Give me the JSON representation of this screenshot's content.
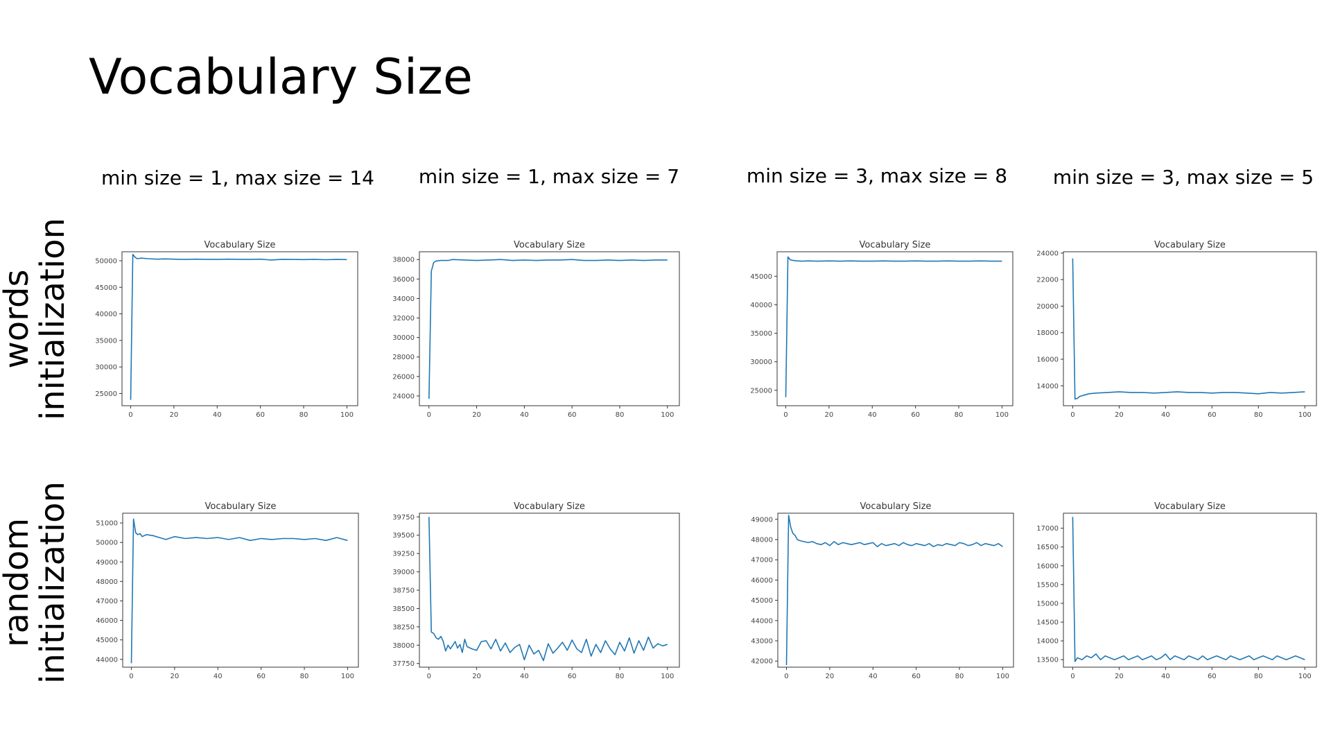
{
  "page": {
    "title": "Vocabulary Size"
  },
  "columns": [
    "min size = 1, max size = 14",
    "min size = 1, max size = 7",
    "min size = 3, max size = 8",
    "min size = 3, max size = 5"
  ],
  "rows": [
    {
      "line1": "words",
      "line2": "initialization"
    },
    {
      "line1": "random",
      "line2": "initialization"
    }
  ],
  "colors": {
    "line": "#1f77b4",
    "text": "#000000",
    "axis": "#333333"
  },
  "chart_data": [
    {
      "type": "line",
      "title": "Vocabulary Size",
      "xlabel": "",
      "ylabel": "",
      "xlim": [
        -4,
        105
      ],
      "ylim": [
        22700,
        51700
      ],
      "xticks": [
        0,
        20,
        40,
        60,
        80,
        100
      ],
      "yticks": [
        25000,
        30000,
        35000,
        40000,
        45000,
        50000
      ],
      "series": [
        {
          "x": [
            0,
            1,
            2,
            3,
            5,
            8,
            12,
            16,
            20,
            25,
            30,
            35,
            40,
            45,
            50,
            55,
            60,
            65,
            70,
            75,
            80,
            85,
            90,
            95,
            100
          ],
          "y": [
            23800,
            51200,
            50700,
            50400,
            50500,
            50400,
            50300,
            50350,
            50300,
            50250,
            50300,
            50280,
            50250,
            50300,
            50270,
            50250,
            50300,
            50150,
            50280,
            50250,
            50220,
            50280,
            50200,
            50250,
            50230
          ]
        }
      ]
    },
    {
      "type": "line",
      "title": "Vocabulary Size",
      "xlabel": "",
      "ylabel": "",
      "xlim": [
        -4,
        105
      ],
      "ylim": [
        23000,
        38800
      ],
      "xticks": [
        0,
        20,
        40,
        60,
        80,
        100
      ],
      "yticks": [
        24000,
        26000,
        28000,
        30000,
        32000,
        34000,
        36000,
        38000
      ],
      "series": [
        {
          "x": [
            0,
            1,
            2,
            3,
            5,
            8,
            10,
            15,
            20,
            25,
            30,
            35,
            40,
            45,
            50,
            55,
            60,
            65,
            70,
            75,
            80,
            85,
            90,
            95,
            100
          ],
          "y": [
            23700,
            36800,
            37700,
            37850,
            37900,
            37900,
            38000,
            37950,
            37900,
            37950,
            38000,
            37900,
            37950,
            37900,
            37950,
            37950,
            38000,
            37900,
            37900,
            37950,
            37900,
            37950,
            37900,
            37950,
            37950
          ]
        }
      ]
    },
    {
      "type": "line",
      "title": "Vocabulary Size",
      "xlabel": "",
      "ylabel": "",
      "xlim": [
        -4,
        105
      ],
      "ylim": [
        22300,
        49300
      ],
      "xticks": [
        0,
        20,
        40,
        60,
        80,
        100
      ],
      "yticks": [
        25000,
        30000,
        35000,
        40000,
        45000
      ],
      "series": [
        {
          "x": [
            0,
            1,
            2,
            3,
            5,
            8,
            10,
            15,
            20,
            25,
            30,
            35,
            40,
            45,
            50,
            55,
            60,
            65,
            70,
            75,
            80,
            85,
            90,
            95,
            100
          ],
          "y": [
            23800,
            48400,
            47900,
            47800,
            47700,
            47650,
            47700,
            47650,
            47700,
            47650,
            47700,
            47650,
            47650,
            47700,
            47650,
            47650,
            47700,
            47650,
            47650,
            47700,
            47650,
            47650,
            47700,
            47650,
            47650
          ]
        }
      ]
    },
    {
      "type": "line",
      "title": "Vocabulary Size",
      "xlabel": "",
      "ylabel": "",
      "xlim": [
        -4,
        105
      ],
      "ylim": [
        12500,
        24100
      ],
      "xticks": [
        0,
        20,
        40,
        60,
        80,
        100
      ],
      "yticks": [
        14000,
        16000,
        18000,
        20000,
        22000,
        24000
      ],
      "series": [
        {
          "x": [
            0,
            1,
            2,
            3,
            5,
            7,
            10,
            15,
            20,
            25,
            30,
            35,
            40,
            45,
            50,
            55,
            60,
            65,
            70,
            75,
            80,
            85,
            90,
            95,
            100
          ],
          "y": [
            23600,
            13000,
            13050,
            13200,
            13300,
            13400,
            13450,
            13500,
            13550,
            13500,
            13500,
            13450,
            13500,
            13550,
            13500,
            13500,
            13450,
            13500,
            13500,
            13450,
            13400,
            13500,
            13450,
            13500,
            13550
          ]
        }
      ]
    },
    {
      "type": "line",
      "title": "Vocabulary Size",
      "xlabel": "",
      "ylabel": "",
      "xlim": [
        -4,
        105
      ],
      "ylim": [
        43600,
        51500
      ],
      "xticks": [
        0,
        20,
        40,
        60,
        80,
        100
      ],
      "yticks": [
        44000,
        45000,
        46000,
        47000,
        48000,
        49000,
        50000,
        51000
      ],
      "series": [
        {
          "x": [
            0,
            1,
            2,
            3,
            4,
            5,
            7,
            10,
            13,
            16,
            20,
            25,
            30,
            35,
            40,
            45,
            50,
            55,
            60,
            65,
            70,
            75,
            80,
            85,
            90,
            95,
            100
          ],
          "y": [
            43800,
            51200,
            50500,
            50400,
            50450,
            50300,
            50400,
            50350,
            50250,
            50150,
            50300,
            50200,
            50250,
            50200,
            50250,
            50150,
            50250,
            50100,
            50200,
            50150,
            50200,
            50200,
            50150,
            50200,
            50100,
            50250,
            50100
          ]
        }
      ]
    },
    {
      "type": "line",
      "title": "Vocabulary Size",
      "xlabel": "",
      "ylabel": "",
      "xlim": [
        -4,
        105
      ],
      "ylim": [
        37700,
        39800
      ],
      "xticks": [
        0,
        20,
        40,
        60,
        80,
        100
      ],
      "yticks": [
        37750,
        38000,
        38250,
        38500,
        38750,
        39000,
        39250,
        39500,
        39750
      ],
      "series": [
        {
          "x": [
            0,
            1,
            2,
            3,
            4,
            5,
            6,
            7,
            8,
            9,
            10,
            11,
            12,
            13,
            14,
            15,
            16,
            18,
            20,
            22,
            24,
            26,
            28,
            30,
            32,
            34,
            36,
            38,
            40,
            42,
            44,
            46,
            48,
            50,
            52,
            54,
            56,
            58,
            60,
            62,
            64,
            66,
            68,
            70,
            72,
            74,
            76,
            78,
            80,
            82,
            84,
            86,
            88,
            90,
            92,
            94,
            96,
            98,
            100
          ],
          "y": [
            39750,
            38180,
            38160,
            38100,
            38080,
            38120,
            38050,
            37920,
            38000,
            37950,
            38000,
            38050,
            37960,
            38010,
            37900,
            38080,
            37980,
            37950,
            37930,
            38050,
            38060,
            37950,
            38080,
            37920,
            38030,
            37900,
            37970,
            38010,
            37800,
            38000,
            37880,
            37930,
            37790,
            38020,
            37890,
            37960,
            38040,
            37930,
            38070,
            37950,
            37900,
            38080,
            37850,
            38010,
            37900,
            38060,
            37950,
            37870,
            38040,
            37920,
            38100,
            37890,
            38060,
            37930,
            38110,
            37960,
            38020,
            37990,
            38010
          ]
        }
      ]
    },
    {
      "type": "line",
      "title": "Vocabulary Size",
      "xlabel": "",
      "ylabel": "",
      "xlim": [
        -4,
        105
      ],
      "ylim": [
        41700,
        49300
      ],
      "xticks": [
        0,
        20,
        40,
        60,
        80,
        100
      ],
      "yticks": [
        42000,
        43000,
        44000,
        45000,
        46000,
        47000,
        48000,
        49000
      ],
      "series": [
        {
          "x": [
            0,
            1,
            2,
            3,
            4,
            5,
            6,
            8,
            10,
            12,
            14,
            16,
            18,
            20,
            22,
            24,
            26,
            28,
            30,
            32,
            34,
            36,
            38,
            40,
            42,
            44,
            46,
            48,
            50,
            52,
            54,
            56,
            58,
            60,
            62,
            64,
            66,
            68,
            70,
            72,
            74,
            76,
            78,
            80,
            82,
            84,
            86,
            88,
            90,
            92,
            94,
            96,
            98,
            100
          ],
          "y": [
            41800,
            49200,
            48600,
            48300,
            48200,
            48000,
            47950,
            47900,
            47850,
            47900,
            47800,
            47750,
            47850,
            47700,
            47900,
            47750,
            47850,
            47800,
            47750,
            47800,
            47850,
            47750,
            47800,
            47850,
            47650,
            47800,
            47700,
            47750,
            47800,
            47700,
            47850,
            47750,
            47700,
            47800,
            47750,
            47700,
            47800,
            47650,
            47750,
            47700,
            47800,
            47750,
            47700,
            47850,
            47800,
            47700,
            47750,
            47850,
            47700,
            47800,
            47750,
            47700,
            47800,
            47650
          ]
        }
      ]
    },
    {
      "type": "line",
      "title": "Vocabulary Size",
      "xlabel": "",
      "ylabel": "",
      "xlim": [
        -4,
        105
      ],
      "ylim": [
        13300,
        17400
      ],
      "xticks": [
        0,
        20,
        40,
        60,
        80,
        100
      ],
      "yticks": [
        13500,
        14000,
        14500,
        15000,
        15500,
        16000,
        16500,
        17000
      ],
      "series": [
        {
          "x": [
            0,
            1,
            2,
            4,
            6,
            8,
            10,
            12,
            14,
            16,
            18,
            20,
            22,
            24,
            26,
            28,
            30,
            32,
            34,
            36,
            38,
            40,
            42,
            44,
            46,
            48,
            50,
            52,
            54,
            56,
            58,
            60,
            62,
            64,
            66,
            68,
            70,
            72,
            74,
            76,
            78,
            80,
            82,
            84,
            86,
            88,
            90,
            92,
            94,
            96,
            98,
            100
          ],
          "y": [
            17300,
            13450,
            13550,
            13500,
            13600,
            13550,
            13650,
            13500,
            13600,
            13550,
            13500,
            13550,
            13600,
            13500,
            13550,
            13600,
            13500,
            13550,
            13600,
            13500,
            13550,
            13650,
            13500,
            13600,
            13550,
            13500,
            13600,
            13550,
            13500,
            13600,
            13500,
            13550,
            13600,
            13550,
            13500,
            13600,
            13550,
            13500,
            13550,
            13600,
            13500,
            13550,
            13600,
            13550,
            13500,
            13600,
            13550,
            13500,
            13550,
            13600,
            13550,
            13500
          ]
        }
      ]
    }
  ]
}
